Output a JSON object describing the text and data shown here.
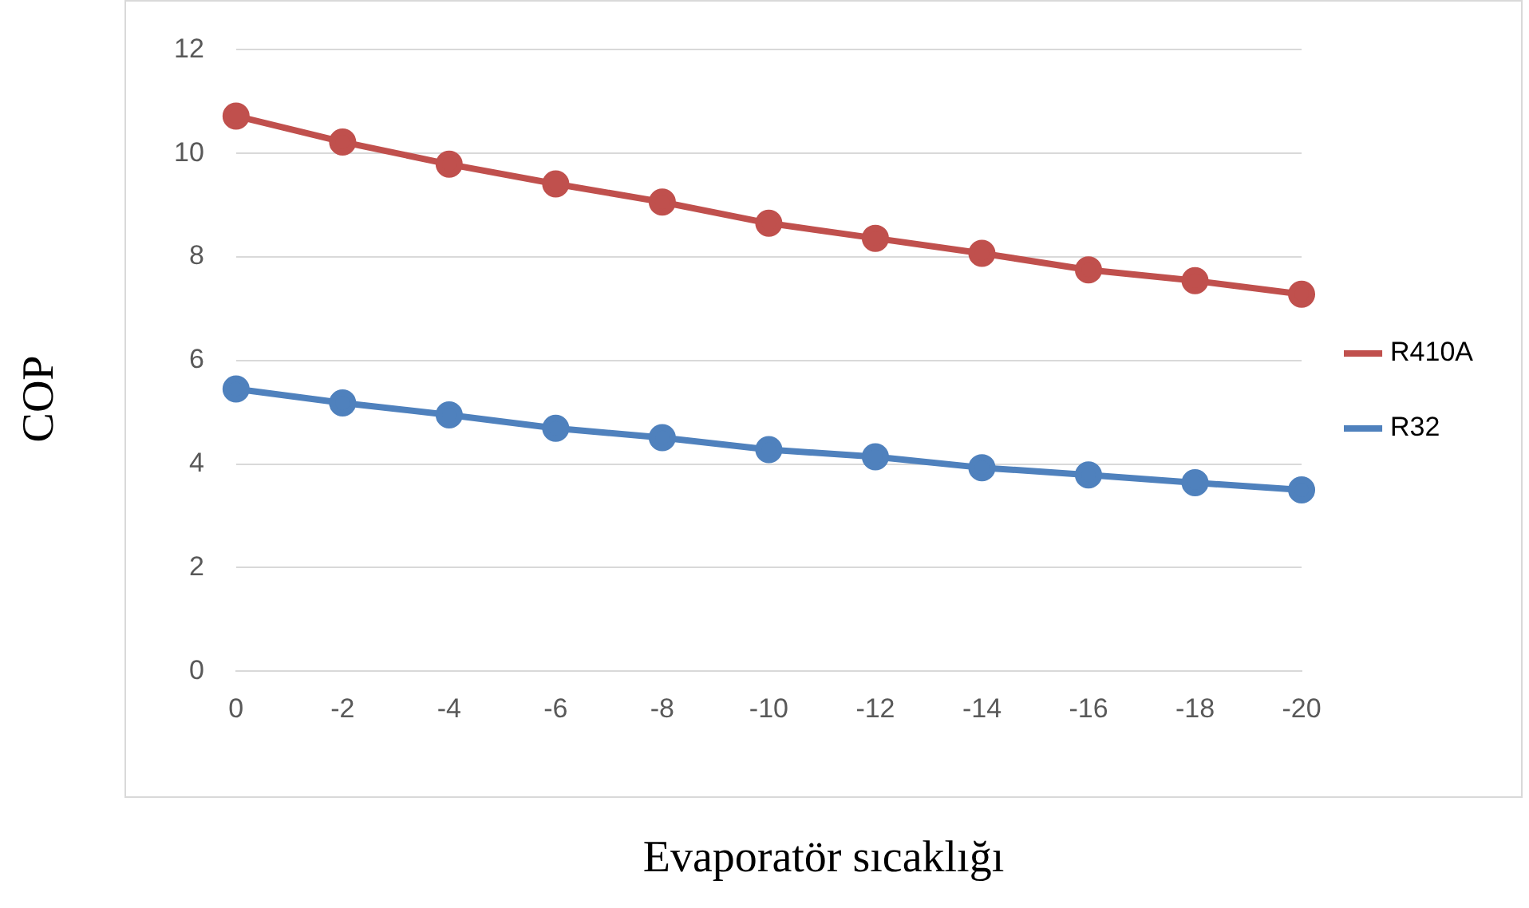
{
  "chart_data": {
    "type": "line",
    "xlabel": "Evaporatör sıcaklığı",
    "ylabel": "COP",
    "categories": [
      "0",
      "-2",
      "-4",
      "-6",
      "-8",
      "-10",
      "-12",
      "-14",
      "-16",
      "-18",
      "-20"
    ],
    "series": [
      {
        "name": "R410A",
        "color": "#c0504d",
        "values": [
          10.72,
          10.22,
          9.79,
          9.41,
          9.06,
          8.65,
          8.36,
          8.07,
          7.75,
          7.54,
          7.28
        ]
      },
      {
        "name": "R32",
        "color": "#4f81bd",
        "values": [
          5.45,
          5.18,
          4.95,
          4.69,
          4.51,
          4.28,
          4.14,
          3.93,
          3.79,
          3.64,
          3.5
        ]
      }
    ],
    "ylim": [
      0,
      12
    ],
    "yticks": [
      0,
      2,
      4,
      6,
      8,
      10,
      12
    ],
    "grid": "y",
    "legend": "right",
    "marker": "circle",
    "line_style": "solid"
  }
}
